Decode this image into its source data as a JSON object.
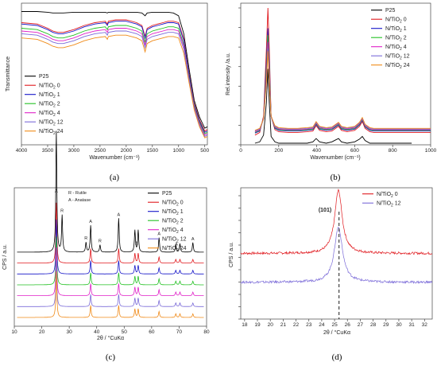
{
  "series_names": [
    "P25",
    "N/TiO2 0",
    "N/TiO2 1",
    "N/TiO2 2",
    "N/TiO2 4",
    "N/TiO2 12",
    "N/TiO2 24"
  ],
  "colors": {
    "P25": "#000000",
    "N/TiO2 0": "#e0191e",
    "N/TiO2 1": "#1414c8",
    "N/TiO2 2": "#22c022",
    "N/TiO2 4": "#e020c8",
    "N/TiO2 12": "#7a6ad8",
    "N/TiO2 24": "#f08a18"
  },
  "chart_data": [
    {
      "type": "line",
      "panel_label": "(a)",
      "xlabel": "Wavenumber (cm⁻¹)",
      "ylabel": "Transmittance",
      "xlim": [
        4000,
        450
      ],
      "x_reversed": true,
      "x_ticks": [
        "4000",
        "3500",
        "3000",
        "2500",
        "2000",
        "1500",
        "1000",
        "500"
      ],
      "legend": "bottom-left",
      "x": [
        4000,
        3700,
        3500,
        3400,
        3300,
        3200,
        3000,
        2800,
        2600,
        2400,
        2360,
        2340,
        2200,
        2000,
        1900,
        1800,
        1700,
        1640,
        1600,
        1500,
        1400,
        1300,
        1200,
        1100,
        1000,
        900,
        800,
        700,
        600,
        500,
        450
      ],
      "series": [
        {
          "name": "P25",
          "values": [
            0.96,
            0.96,
            0.955,
            0.95,
            0.95,
            0.95,
            0.955,
            0.955,
            0.955,
            0.955,
            0.95,
            0.955,
            0.955,
            0.955,
            0.955,
            0.955,
            0.95,
            0.93,
            0.95,
            0.955,
            0.955,
            0.955,
            0.955,
            0.95,
            0.93,
            0.8,
            0.55,
            0.32,
            0.2,
            0.12,
            0.13
          ]
        },
        {
          "name": "N/TiO2 0",
          "values": [
            0.88,
            0.87,
            0.84,
            0.82,
            0.81,
            0.81,
            0.83,
            0.86,
            0.88,
            0.89,
            0.87,
            0.89,
            0.9,
            0.9,
            0.89,
            0.88,
            0.86,
            0.78,
            0.84,
            0.86,
            0.87,
            0.88,
            0.89,
            0.89,
            0.88,
            0.76,
            0.52,
            0.3,
            0.18,
            0.1,
            0.11
          ]
        },
        {
          "name": "N/TiO2 1",
          "values": [
            0.87,
            0.86,
            0.83,
            0.81,
            0.8,
            0.8,
            0.82,
            0.85,
            0.87,
            0.88,
            0.86,
            0.88,
            0.89,
            0.89,
            0.88,
            0.87,
            0.85,
            0.77,
            0.83,
            0.85,
            0.86,
            0.87,
            0.88,
            0.88,
            0.87,
            0.75,
            0.51,
            0.29,
            0.17,
            0.09,
            0.1
          ]
        },
        {
          "name": "N/TiO2 2",
          "values": [
            0.84,
            0.83,
            0.8,
            0.78,
            0.77,
            0.77,
            0.79,
            0.82,
            0.84,
            0.85,
            0.83,
            0.85,
            0.86,
            0.86,
            0.85,
            0.84,
            0.82,
            0.74,
            0.8,
            0.82,
            0.83,
            0.84,
            0.85,
            0.85,
            0.84,
            0.72,
            0.49,
            0.28,
            0.16,
            0.08,
            0.09
          ]
        },
        {
          "name": "N/TiO2 4",
          "values": [
            0.82,
            0.81,
            0.78,
            0.76,
            0.75,
            0.75,
            0.77,
            0.8,
            0.82,
            0.83,
            0.81,
            0.83,
            0.84,
            0.84,
            0.83,
            0.82,
            0.8,
            0.72,
            0.78,
            0.8,
            0.81,
            0.82,
            0.83,
            0.83,
            0.82,
            0.71,
            0.48,
            0.27,
            0.15,
            0.07,
            0.08
          ]
        },
        {
          "name": "N/TiO2 12",
          "values": [
            0.8,
            0.79,
            0.76,
            0.74,
            0.73,
            0.73,
            0.75,
            0.78,
            0.8,
            0.81,
            0.79,
            0.81,
            0.82,
            0.82,
            0.81,
            0.8,
            0.78,
            0.7,
            0.76,
            0.78,
            0.79,
            0.8,
            0.81,
            0.81,
            0.8,
            0.69,
            0.47,
            0.26,
            0.14,
            0.06,
            0.07
          ]
        },
        {
          "name": "N/TiO2 24",
          "values": [
            0.77,
            0.76,
            0.73,
            0.71,
            0.7,
            0.7,
            0.72,
            0.75,
            0.77,
            0.78,
            0.76,
            0.78,
            0.79,
            0.79,
            0.78,
            0.77,
            0.75,
            0.67,
            0.73,
            0.75,
            0.76,
            0.77,
            0.78,
            0.78,
            0.77,
            0.66,
            0.45,
            0.25,
            0.13,
            0.05,
            0.06
          ]
        }
      ]
    },
    {
      "type": "line",
      "panel_label": "(b)",
      "xlabel": "Wavenumber (cm⁻¹)",
      "ylabel": "Rel.intensity /a.u.",
      "xlim": [
        0,
        1000
      ],
      "x_ticks": [
        "0",
        "200",
        "400",
        "600",
        "800",
        "1000"
      ],
      "legend": "top-right",
      "x": [
        75,
        100,
        120,
        135,
        143,
        150,
        160,
        180,
        200,
        250,
        300,
        350,
        380,
        397,
        415,
        450,
        480,
        500,
        515,
        530,
        560,
        600,
        625,
        640,
        655,
        680,
        700,
        800,
        900,
        1000
      ],
      "series": [
        {
          "name": "P25",
          "values": [
            0.0,
            0.01,
            0.06,
            0.3,
            0.55,
            0.3,
            0.05,
            0.01,
            0.0,
            0.0,
            0.0,
            0.0,
            0.01,
            0.035,
            0.01,
            0.0,
            0.01,
            0.025,
            0.035,
            0.01,
            0.0,
            0.01,
            0.03,
            0.05,
            0.02,
            0.0,
            0.0,
            0.0,
            0.0,
            null
          ]
        },
        {
          "name": "N/TiO2 0",
          "values": [
            0.06,
            0.08,
            0.2,
            0.7,
            1.0,
            0.7,
            0.2,
            0.1,
            0.085,
            0.08,
            0.08,
            0.085,
            0.09,
            0.13,
            0.095,
            0.085,
            0.09,
            0.11,
            0.125,
            0.095,
            0.085,
            0.095,
            0.125,
            0.16,
            0.11,
            0.085,
            0.08,
            0.08,
            0.08,
            0.08
          ]
        },
        {
          "name": "N/TiO2 1",
          "values": [
            0.075,
            0.09,
            0.19,
            0.6,
            0.85,
            0.6,
            0.2,
            0.11,
            0.095,
            0.09,
            0.09,
            0.095,
            0.1,
            0.14,
            0.105,
            0.095,
            0.1,
            0.12,
            0.135,
            0.105,
            0.095,
            0.105,
            0.135,
            0.17,
            0.12,
            0.095,
            0.09,
            0.09,
            0.09,
            0.09
          ]
        },
        {
          "name": "N/TiO2 2",
          "values": [
            0.08,
            0.095,
            0.18,
            0.55,
            0.8,
            0.55,
            0.2,
            0.115,
            0.1,
            0.095,
            0.095,
            0.1,
            0.105,
            0.145,
            0.11,
            0.1,
            0.105,
            0.125,
            0.14,
            0.11,
            0.1,
            0.11,
            0.14,
            0.175,
            0.125,
            0.1,
            0.095,
            0.095,
            0.095,
            0.095
          ]
        },
        {
          "name": "N/TiO2 4",
          "values": [
            0.085,
            0.1,
            0.18,
            0.5,
            0.75,
            0.5,
            0.2,
            0.12,
            0.105,
            0.1,
            0.1,
            0.105,
            0.11,
            0.15,
            0.115,
            0.105,
            0.11,
            0.13,
            0.145,
            0.115,
            0.105,
            0.115,
            0.145,
            0.18,
            0.13,
            0.105,
            0.1,
            0.1,
            0.1,
            0.1
          ]
        },
        {
          "name": "N/TiO2 12",
          "values": [
            0.09,
            0.105,
            0.18,
            0.45,
            0.7,
            0.45,
            0.2,
            0.125,
            0.11,
            0.105,
            0.105,
            0.11,
            0.115,
            0.155,
            0.12,
            0.11,
            0.115,
            0.135,
            0.15,
            0.12,
            0.11,
            0.12,
            0.15,
            0.185,
            0.135,
            0.11,
            0.105,
            0.105,
            0.105,
            0.105
          ]
        },
        {
          "name": "N/TiO2 24",
          "values": [
            0.095,
            0.11,
            0.18,
            0.45,
            0.68,
            0.45,
            0.2,
            0.13,
            0.115,
            0.11,
            0.11,
            0.115,
            0.12,
            0.16,
            0.125,
            0.115,
            0.12,
            0.14,
            0.155,
            0.125,
            0.115,
            0.125,
            0.155,
            0.19,
            0.14,
            0.115,
            0.11,
            0.11,
            0.11,
            0.11
          ]
        }
      ]
    },
    {
      "type": "line",
      "panel_label": "(c)",
      "xlabel": "2θ / °CuKα",
      "ylabel": "CPS / a.u.",
      "xlim": [
        10,
        80
      ],
      "x_ticks": [
        "10",
        "20",
        "30",
        "40",
        "50",
        "60",
        "70",
        "80"
      ],
      "legend": "top-right",
      "annotations": [
        "R - Rutile",
        "A - Anatase"
      ],
      "peak_markers": [
        {
          "x": 25.3,
          "label": "A"
        },
        {
          "x": 27.4,
          "label": "R"
        },
        {
          "x": 36.1,
          "label": "R"
        },
        {
          "x": 37.8,
          "label": "A"
        },
        {
          "x": 41.2,
          "label": "R"
        },
        {
          "x": 48.0,
          "label": "A"
        },
        {
          "x": 54.5,
          "label": "A"
        },
        {
          "x": 62.7,
          "label": "A"
        },
        {
          "x": 69.0,
          "label": "A"
        },
        {
          "x": 75.0,
          "label": "A"
        }
      ],
      "peaks_x": [
        25.3,
        27.4,
        36.1,
        37.8,
        41.2,
        48.0,
        53.9,
        55.1,
        62.7,
        68.8,
        70.3,
        75.0
      ],
      "series": [
        {
          "name": "P25",
          "offset": 0.3,
          "peak_heights": [
            1.0,
            0.3,
            0.08,
            0.22,
            0.06,
            0.28,
            0.18,
            0.18,
            0.12,
            0.06,
            0.07,
            0.08
          ]
        },
        {
          "name": "N/TiO2 0",
          "offset": 0.25,
          "peak_heights": [
            0.5,
            0.0,
            0.0,
            0.12,
            0.0,
            0.12,
            0.08,
            0.08,
            0.05,
            0.03,
            0.03,
            0.03
          ]
        },
        {
          "name": "N/TiO2 1",
          "offset": 0.2,
          "peak_heights": [
            0.45,
            0.0,
            0.0,
            0.11,
            0.0,
            0.11,
            0.07,
            0.07,
            0.05,
            0.03,
            0.03,
            0.03
          ]
        },
        {
          "name": "N/TiO2 2",
          "offset": 0.15,
          "peak_heights": [
            0.4,
            0.0,
            0.0,
            0.1,
            0.0,
            0.1,
            0.07,
            0.07,
            0.05,
            0.03,
            0.03,
            0.03
          ]
        },
        {
          "name": "N/TiO2 4",
          "offset": 0.1,
          "peak_heights": [
            0.4,
            0.0,
            0.0,
            0.1,
            0.0,
            0.1,
            0.07,
            0.07,
            0.05,
            0.03,
            0.03,
            0.03
          ]
        },
        {
          "name": "N/TiO2 12",
          "offset": 0.05,
          "peak_heights": [
            0.38,
            0.0,
            0.0,
            0.1,
            0.0,
            0.1,
            0.07,
            0.07,
            0.05,
            0.03,
            0.03,
            0.03
          ]
        },
        {
          "name": "N/TiO2 24",
          "offset": 0.0,
          "peak_heights": [
            0.38,
            0.0,
            0.0,
            0.1,
            0.0,
            0.1,
            0.07,
            0.07,
            0.05,
            0.03,
            0.03,
            0.03
          ]
        }
      ]
    },
    {
      "type": "line",
      "panel_label": "(d)",
      "xlabel": "2θ / °CuKα",
      "ylabel": "CPS / a.u.",
      "xlim": [
        17.7,
        32.6
      ],
      "x_ticks": [
        "18",
        "19",
        "20",
        "21",
        "22",
        "23",
        "24",
        "25",
        "26",
        "27",
        "28",
        "29",
        "30",
        "31",
        "32"
      ],
      "legend": "top-right",
      "annotation": "(101)",
      "reference_line_x": 25.35,
      "series": [
        {
          "name": "N/TiO2 0",
          "color": "#e0191e",
          "baseline": 0.5,
          "peak_center": 25.3,
          "peak_height": 0.48,
          "peak_width": 0.35
        },
        {
          "name": "N/TiO2 12",
          "color": "#7a6ad8",
          "baseline": 0.28,
          "peak_center": 25.3,
          "peak_height": 0.42,
          "peak_width": 0.38
        }
      ]
    }
  ]
}
